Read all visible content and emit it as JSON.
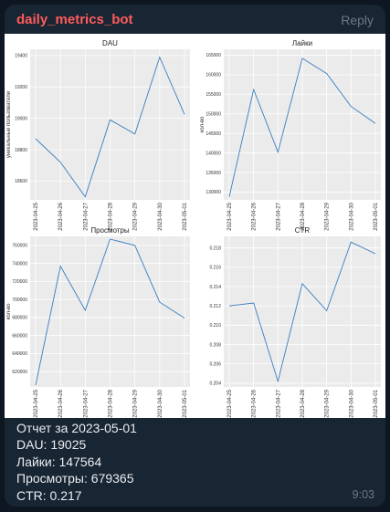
{
  "message": {
    "sender": "daily_metrics_bot",
    "reply_label": "Reply",
    "time": "9:03",
    "caption": {
      "line1": "Отчет за 2023-05-01",
      "line2": "DAU: 19025",
      "line3": "Лайки: 147564",
      "line4": "Просмотры: 679365",
      "line5": "CTR: 0.217"
    }
  },
  "chart_data": [
    {
      "type": "line",
      "title": "DAU",
      "ylabel": "уникальные пользователи",
      "x": [
        "2023-04-25",
        "2023-04-26",
        "2023-04-27",
        "2023-04-28",
        "2023-04-29",
        "2023-04-30",
        "2023-05-01"
      ],
      "values": [
        18870,
        18720,
        18500,
        18990,
        18900,
        19390,
        19025
      ],
      "yticks": [
        18600,
        18800,
        19000,
        19200,
        19400
      ],
      "ylim": [
        18480,
        19440
      ],
      "color": "#3a7dbf"
    },
    {
      "type": "line",
      "title": "Лайки",
      "ylabel": "кол-во",
      "x": [
        "2023-04-25",
        "2023-04-26",
        "2023-04-27",
        "2023-04-28",
        "2023-04-29",
        "2023-04-30",
        "2023-05-01"
      ],
      "values": [
        128800,
        156200,
        140200,
        164200,
        160300,
        151900,
        147564
      ],
      "yticks": [
        130000,
        135000,
        140000,
        145000,
        150000,
        155000,
        160000,
        165000
      ],
      "ylim": [
        128000,
        166500
      ],
      "color": "#3a7dbf"
    },
    {
      "type": "line",
      "title": "Просмотры",
      "ylabel": "кол-во",
      "x": [
        "2023-04-25",
        "2023-04-26",
        "2023-04-27",
        "2023-04-28",
        "2023-04-29",
        "2023-04-30",
        "2023-05-01"
      ],
      "values": [
        605000,
        737000,
        688000,
        767000,
        760000,
        697000,
        679365
      ],
      "yticks": [
        620000,
        640000,
        660000,
        680000,
        700000,
        720000,
        740000,
        760000
      ],
      "ylim": [
        603000,
        770000
      ],
      "color": "#3a7dbf"
    },
    {
      "type": "line",
      "title": "CTR",
      "ylabel": "",
      "x": [
        "2023-04-25",
        "2023-04-26",
        "2023-04-27",
        "2023-04-28",
        "2023-04-29",
        "2023-04-30",
        "2023-05-01"
      ],
      "values": [
        0.212,
        0.2123,
        0.2042,
        0.2143,
        0.2115,
        0.2186,
        0.2174
      ],
      "yticks": [
        0.204,
        0.206,
        0.208,
        0.21,
        0.212,
        0.214,
        0.216,
        0.218
      ],
      "ylim": [
        0.2036,
        0.2192
      ],
      "color": "#3a7dbf"
    }
  ]
}
